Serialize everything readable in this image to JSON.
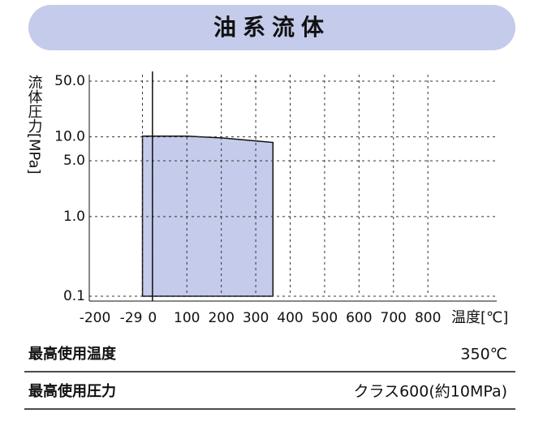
{
  "chart_data": {
    "type": "area",
    "title": "油系流体",
    "x": [
      -29,
      100,
      200,
      300,
      350
    ],
    "values": [
      10.2,
      10.2,
      9.7,
      8.9,
      8.5
    ],
    "color": "#c5cbea",
    "xlim": [
      -200,
      1000
    ],
    "xticks": [
      -200,
      -29,
      0,
      100,
      200,
      300,
      400,
      500,
      600,
      700,
      800
    ],
    "ylim": [
      0.1,
      50
    ],
    "yticks": [
      0.1,
      {
        "value": 1,
        "label": "1.0"
      },
      {
        "value": 5,
        "label": "5.0"
      },
      {
        "value": 10,
        "label": "10.0"
      },
      {
        "value": 50,
        "label": "50.0"
      }
    ],
    "log_y": true,
    "grid": true,
    "x_label": "温度[℃]",
    "y_label": "流体圧力[MPa]",
    "specs": [
      {
        "label": "最高使用温度",
        "value": "350℃"
      },
      {
        "label": "最高使用圧力",
        "value": "クラス600(約10MPa)"
      }
    ]
  }
}
